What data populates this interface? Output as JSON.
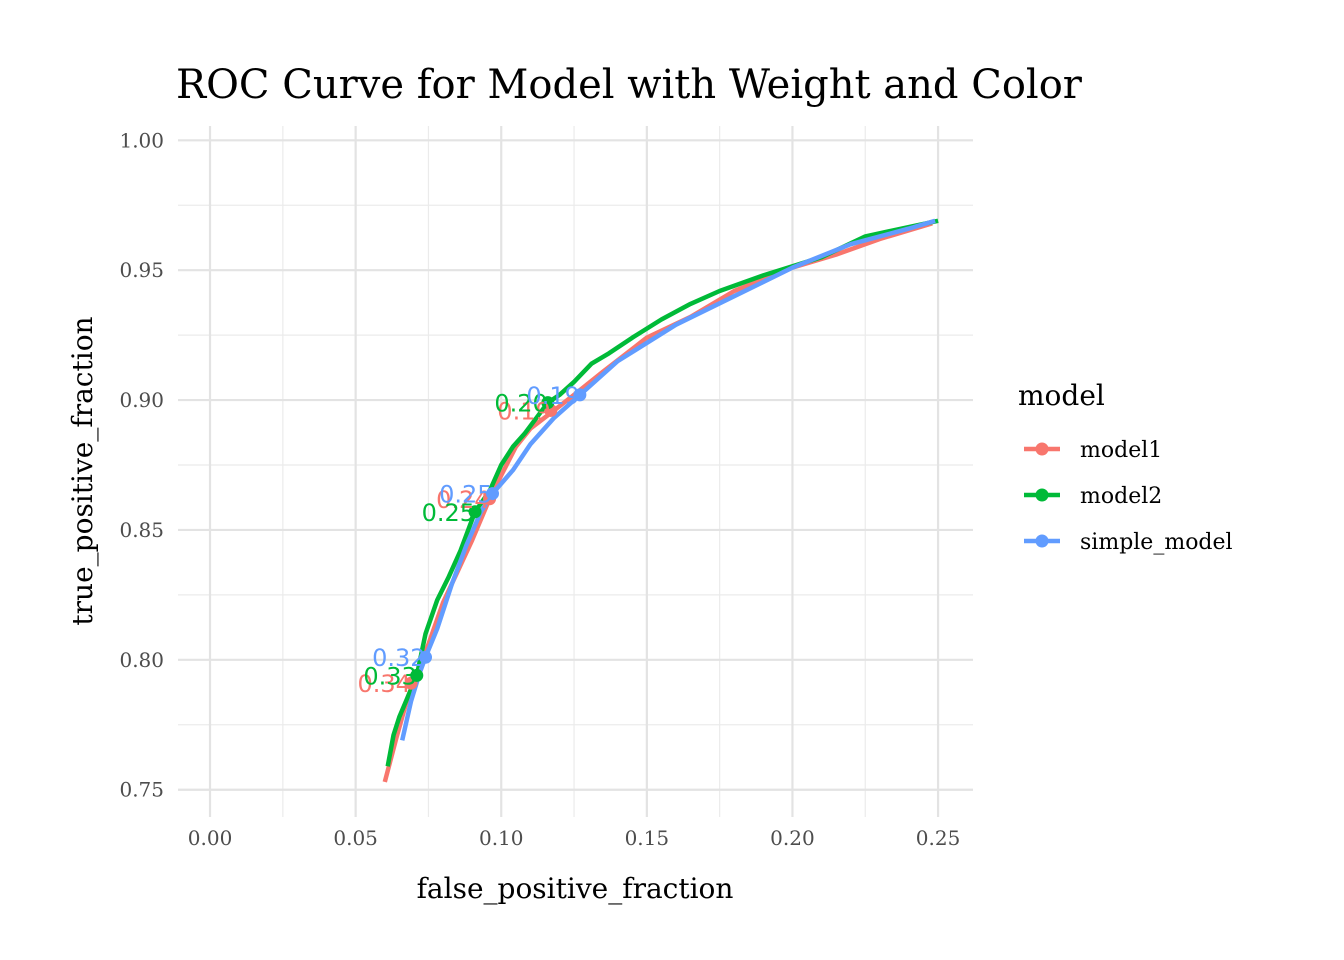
{
  "chart_data": {
    "type": "line",
    "title": "ROC Curve for Model with Weight and Color",
    "xlabel": "false_positive_fraction",
    "ylabel": "true_positive_fraction",
    "xlim": [
      -0.011,
      0.262
    ],
    "ylim": [
      0.7395,
      1.0055
    ],
    "x_ticks": [
      0.0,
      0.05,
      0.1,
      0.15,
      0.2,
      0.25
    ],
    "x_tick_labels": [
      "0.00",
      "0.05",
      "0.10",
      "0.15",
      "0.20",
      "0.25"
    ],
    "y_ticks": [
      0.75,
      0.8,
      0.85,
      0.9,
      0.95,
      1.0
    ],
    "y_tick_labels": [
      "0.75",
      "0.80",
      "0.85",
      "0.90",
      "0.95",
      "1.00"
    ],
    "grid": true,
    "legend": {
      "title": "model",
      "placement": "right"
    },
    "series": [
      {
        "name": "model1",
        "color": "#F8766D",
        "points": [
          [
            0.06,
            0.753
          ],
          [
            0.064,
            0.77
          ],
          [
            0.068,
            0.786
          ],
          [
            0.07,
            0.791
          ],
          [
            0.075,
            0.806
          ],
          [
            0.08,
            0.822
          ],
          [
            0.085,
            0.834
          ],
          [
            0.09,
            0.846
          ],
          [
            0.096,
            0.862
          ],
          [
            0.1,
            0.871
          ],
          [
            0.105,
            0.882
          ],
          [
            0.11,
            0.889
          ],
          [
            0.117,
            0.895
          ],
          [
            0.125,
            0.902
          ],
          [
            0.135,
            0.911
          ],
          [
            0.15,
            0.924
          ],
          [
            0.165,
            0.932
          ],
          [
            0.18,
            0.942
          ],
          [
            0.2,
            0.951
          ],
          [
            0.215,
            0.956
          ],
          [
            0.23,
            0.962
          ],
          [
            0.248,
            0.968
          ]
        ],
        "labeled_points": [
          {
            "x": 0.069,
            "y": 0.791,
            "label": "0.34"
          },
          {
            "x": 0.096,
            "y": 0.862,
            "label": "0.24"
          },
          {
            "x": 0.117,
            "y": 0.896,
            "label": "0.19"
          }
        ]
      },
      {
        "name": "model2",
        "color": "#00BA38",
        "points": [
          [
            0.061,
            0.759
          ],
          [
            0.063,
            0.771
          ],
          [
            0.065,
            0.778
          ],
          [
            0.068,
            0.786
          ],
          [
            0.071,
            0.794
          ],
          [
            0.074,
            0.81
          ],
          [
            0.078,
            0.823
          ],
          [
            0.082,
            0.832
          ],
          [
            0.086,
            0.842
          ],
          [
            0.091,
            0.857
          ],
          [
            0.096,
            0.865
          ],
          [
            0.1,
            0.875
          ],
          [
            0.104,
            0.882
          ],
          [
            0.108,
            0.887
          ],
          [
            0.112,
            0.893
          ],
          [
            0.116,
            0.899
          ],
          [
            0.12,
            0.902
          ],
          [
            0.125,
            0.907
          ],
          [
            0.131,
            0.914
          ],
          [
            0.137,
            0.918
          ],
          [
            0.145,
            0.924
          ],
          [
            0.155,
            0.931
          ],
          [
            0.165,
            0.937
          ],
          [
            0.175,
            0.942
          ],
          [
            0.19,
            0.948
          ],
          [
            0.21,
            0.955
          ],
          [
            0.225,
            0.963
          ],
          [
            0.25,
            0.969
          ]
        ],
        "labeled_points": [
          {
            "x": 0.071,
            "y": 0.794,
            "label": "0.33"
          },
          {
            "x": 0.091,
            "y": 0.857,
            "label": "0.25"
          },
          {
            "x": 0.116,
            "y": 0.899,
            "label": "0.20"
          }
        ]
      },
      {
        "name": "simple_model",
        "color": "#619CFF",
        "points": [
          [
            0.066,
            0.769
          ],
          [
            0.069,
            0.784
          ],
          [
            0.072,
            0.795
          ],
          [
            0.074,
            0.801
          ],
          [
            0.078,
            0.812
          ],
          [
            0.083,
            0.829
          ],
          [
            0.088,
            0.844
          ],
          [
            0.093,
            0.857
          ],
          [
            0.097,
            0.864
          ],
          [
            0.104,
            0.873
          ],
          [
            0.11,
            0.883
          ],
          [
            0.118,
            0.893
          ],
          [
            0.127,
            0.902
          ],
          [
            0.14,
            0.915
          ],
          [
            0.16,
            0.929
          ],
          [
            0.18,
            0.94
          ],
          [
            0.2,
            0.951
          ],
          [
            0.22,
            0.96
          ],
          [
            0.24,
            0.966
          ],
          [
            0.249,
            0.969
          ]
        ],
        "labeled_points": [
          {
            "x": 0.074,
            "y": 0.801,
            "label": "0.32"
          },
          {
            "x": 0.097,
            "y": 0.864,
            "label": "0.25"
          },
          {
            "x": 0.127,
            "y": 0.902,
            "label": "0.19"
          }
        ]
      }
    ]
  }
}
